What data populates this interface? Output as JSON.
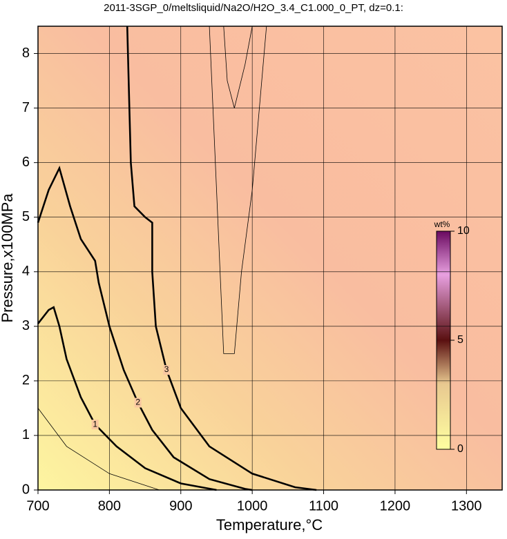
{
  "chart_data": {
    "type": "contour",
    "title": "2011-3SGP_0/meltsliquid/Na2O/H2O_3.4_C1.000_0_PT, dz=0.1:",
    "x_label": "Temperature,°C",
    "y_label": "Pressure,x100MPa",
    "xlim": [
      700,
      1350
    ],
    "ylim": [
      0,
      8.5
    ],
    "xticks": [
      700,
      800,
      900,
      1000,
      1100,
      1200,
      1300
    ],
    "yticks": [
      0,
      1,
      2,
      3,
      4,
      5,
      6,
      7,
      8
    ],
    "grid": true,
    "contours": [
      {
        "level": 0.5,
        "thick": false,
        "x": [
          700,
          740,
          800,
          870
        ],
        "y": [
          1.5,
          0.8,
          0.3,
          0
        ]
      },
      {
        "level": 1,
        "thick": true,
        "x": [
          700,
          715,
          722,
          730,
          740,
          760,
          780,
          810,
          850,
          900,
          950
        ],
        "y": [
          3.05,
          3.3,
          3.35,
          3,
          2.4,
          1.7,
          1.2,
          0.8,
          0.4,
          0.12,
          0
        ]
      },
      {
        "level": 2,
        "thick": true,
        "x": [
          700,
          715,
          730,
          745,
          760,
          780,
          785,
          800,
          820,
          840,
          860,
          890,
          940,
          990,
          1000
        ],
        "y": [
          4.9,
          5.5,
          5.9,
          5.2,
          4.6,
          4.2,
          3.8,
          3,
          2.2,
          1.6,
          1.1,
          0.6,
          0.2,
          0.02,
          0
        ]
      },
      {
        "level": 3,
        "thick": true,
        "x": [
          825,
          828,
          830,
          835,
          850,
          860,
          860,
          865,
          880,
          900,
          940,
          1000,
          1060,
          1090
        ],
        "y": [
          8.5,
          7,
          6,
          5.2,
          5,
          4.9,
          4,
          3,
          2.2,
          1.5,
          0.8,
          0.3,
          0.05,
          0
        ]
      },
      {
        "level": 3.2,
        "thick": false,
        "x": [
          940,
          945,
          950,
          955,
          960,
          975,
          985,
          1000,
          1010,
          1020
        ],
        "y": [
          8.5,
          7,
          5.5,
          4,
          2.5,
          2.5,
          4,
          5.5,
          7,
          8.5
        ]
      },
      {
        "level": 3.4,
        "thick": false,
        "x": [
          960,
          965,
          975,
          990,
          1000
        ],
        "y": [
          8.5,
          7.5,
          7,
          7.8,
          8.5
        ]
      }
    ],
    "colorbar": {
      "label": "wt%",
      "lim": [
        0,
        10
      ],
      "ticks": [
        0,
        5,
        10
      ]
    }
  }
}
